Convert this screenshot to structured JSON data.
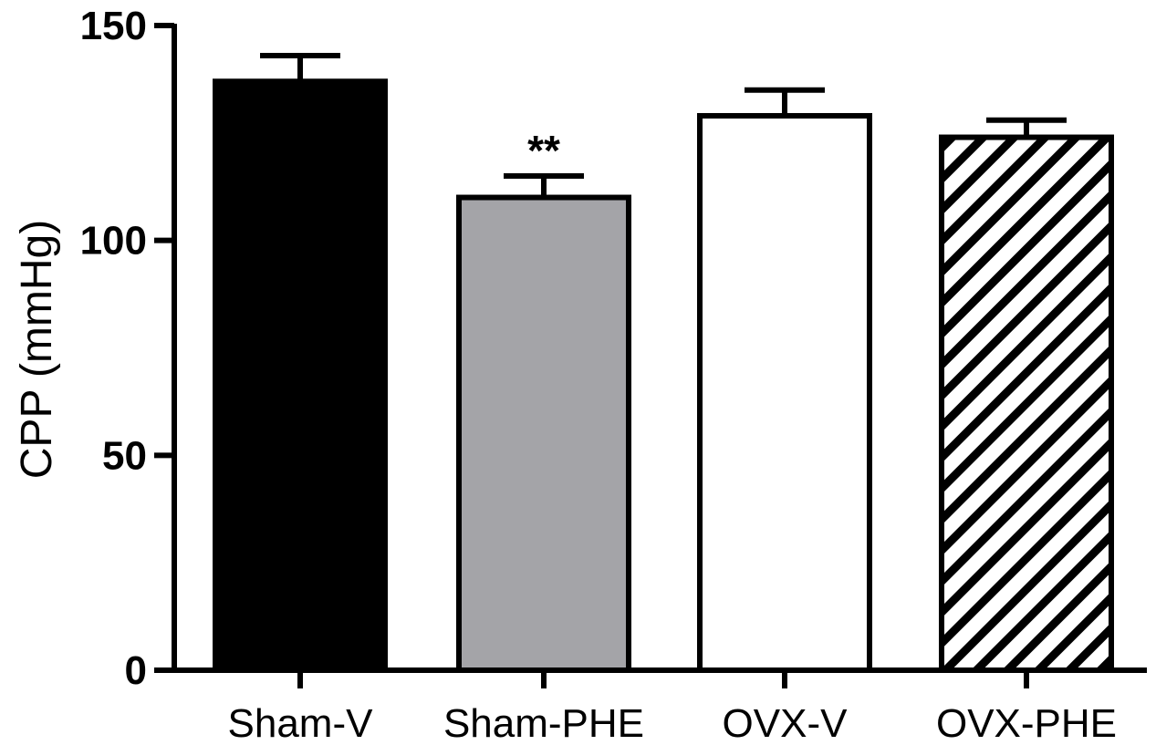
{
  "chart_data": {
    "type": "bar",
    "title": "",
    "xlabel": "",
    "ylabel": "CPP (mmHg)",
    "ylim": [
      0,
      150
    ],
    "yticks": [
      0,
      50,
      100,
      150
    ],
    "categories": [
      "Sham-V",
      "Sham-PHE",
      "OVX-V",
      "OVX-PHE"
    ],
    "values": [
      137,
      110,
      129,
      124
    ],
    "errors": [
      6,
      5,
      6,
      4
    ],
    "annotations": [
      "",
      "**",
      "",
      ""
    ],
    "colors": {
      "Sham-V": "#000000",
      "Sham-PHE": "#a4a4a8",
      "OVX-V": "#ffffff",
      "OVX-PHE": "hatched"
    },
    "grid": false,
    "legend": "none"
  }
}
